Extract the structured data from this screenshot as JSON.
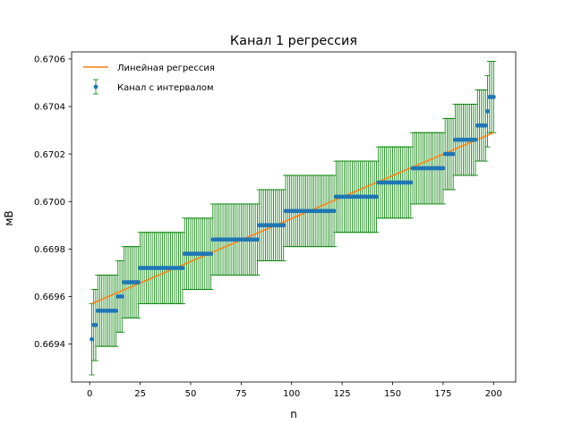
{
  "chart_data": {
    "type": "scatter",
    "title": "Канал 1 регрессия",
    "xlabel": "n",
    "ylabel": "мВ",
    "xlim": [
      -8.95,
      210.95
    ],
    "ylim": [
      0.66924,
      0.67063
    ],
    "xticks": [
      0,
      25,
      50,
      75,
      100,
      125,
      150,
      175,
      200
    ],
    "yticks": [
      0.6694,
      0.6696,
      0.6698,
      0.67,
      0.6702,
      0.6704,
      0.6706
    ],
    "ytick_labels": [
      "0.6694",
      "0.6696",
      "0.6698",
      "0.6700",
      "0.6702",
      "0.6704",
      "0.6706"
    ],
    "grid": false,
    "legend_position": "upper-left",
    "legend": [
      "Линейная регрессия",
      "Канал с интервалом"
    ],
    "colors": {
      "regression": "#ff7f0e",
      "points": "#1f77b4",
      "errorbars": "#008000"
    },
    "regression": {
      "name": "Линейная регрессия",
      "x": [
        1,
        200
      ],
      "y": [
        0.66957,
        0.67029
      ]
    },
    "points": {
      "name": "Канал с интервалом",
      "error": 0.00015,
      "segments": [
        {
          "x_start": 1,
          "x_end": 1,
          "y": 0.66942
        },
        {
          "x_start": 2,
          "x_end": 3,
          "y": 0.66948
        },
        {
          "x_start": 4,
          "x_end": 13,
          "y": 0.66954
        },
        {
          "x_start": 14,
          "x_end": 16,
          "y": 0.6696
        },
        {
          "x_start": 17,
          "x_end": 24,
          "y": 0.66966
        },
        {
          "x_start": 25,
          "x_end": 46,
          "y": 0.66972
        },
        {
          "x_start": 47,
          "x_end": 60,
          "y": 0.66978
        },
        {
          "x_start": 61,
          "x_end": 83,
          "y": 0.66984
        },
        {
          "x_start": 84,
          "x_end": 96,
          "y": 0.6699
        },
        {
          "x_start": 97,
          "x_end": 121,
          "y": 0.66996
        },
        {
          "x_start": 122,
          "x_end": 142,
          "y": 0.67002
        },
        {
          "x_start": 143,
          "x_end": 159,
          "y": 0.67008
        },
        {
          "x_start": 160,
          "x_end": 175,
          "y": 0.67014
        },
        {
          "x_start": 176,
          "x_end": 180,
          "y": 0.6702
        },
        {
          "x_start": 181,
          "x_end": 191,
          "y": 0.67026
        },
        {
          "x_start": 192,
          "x_end": 196,
          "y": 0.67032
        },
        {
          "x_start": 197,
          "x_end": 197,
          "y": 0.67038
        },
        {
          "x_start": 198,
          "x_end": 200,
          "y": 0.67044
        }
      ]
    }
  }
}
